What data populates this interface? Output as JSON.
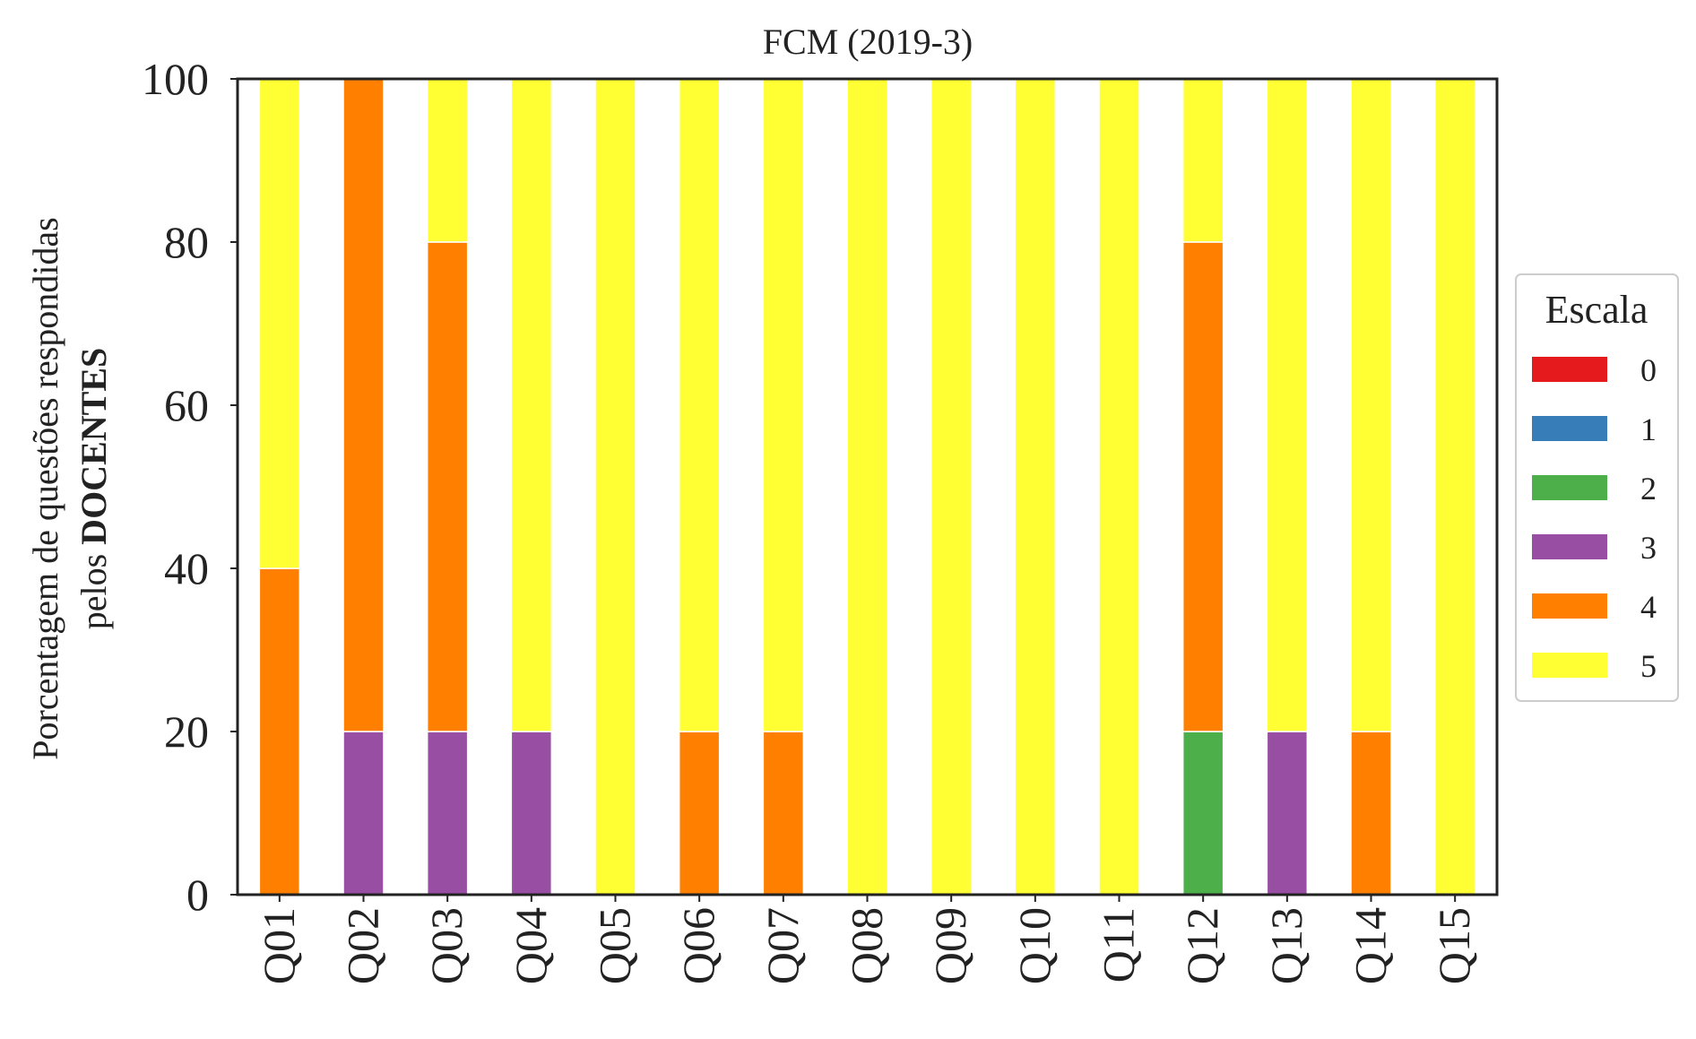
{
  "chart_data": {
    "type": "bar",
    "stacked": true,
    "title": "FCM (2019-3)",
    "ylabel_line1": "Porcentagem de questões respondidas",
    "ylabel_line2_prefix": "pelos ",
    "ylabel_line2_bold": "DOCENTES",
    "xlabel": "",
    "ylim": [
      0,
      100
    ],
    "yticks": [
      0,
      20,
      40,
      60,
      80,
      100
    ],
    "grid": false,
    "categories": [
      "Q01",
      "Q02",
      "Q03",
      "Q04",
      "Q05",
      "Q06",
      "Q07",
      "Q08",
      "Q09",
      "Q10",
      "Q11",
      "Q12",
      "Q13",
      "Q14",
      "Q15"
    ],
    "legend": {
      "title": "Escala",
      "placement": "right"
    },
    "series": [
      {
        "name": "0",
        "color": "#e41a1c",
        "values": [
          0,
          0,
          0,
          0,
          0,
          0,
          0,
          0,
          0,
          0,
          0,
          0,
          0,
          0,
          0
        ]
      },
      {
        "name": "1",
        "color": "#377eb8",
        "values": [
          0,
          0,
          0,
          0,
          0,
          0,
          0,
          0,
          0,
          0,
          0,
          0,
          0,
          0,
          0
        ]
      },
      {
        "name": "2",
        "color": "#4daf4a",
        "values": [
          0,
          0,
          0,
          0,
          0,
          0,
          0,
          0,
          0,
          0,
          0,
          20,
          0,
          0,
          0
        ]
      },
      {
        "name": "3",
        "color": "#984ea3",
        "values": [
          0,
          20,
          20,
          20,
          0,
          0,
          0,
          0,
          0,
          0,
          0,
          0,
          20,
          0,
          0
        ]
      },
      {
        "name": "4",
        "color": "#ff7f00",
        "values": [
          40,
          80,
          60,
          0,
          0,
          20,
          20,
          0,
          0,
          0,
          0,
          60,
          0,
          20,
          0
        ]
      },
      {
        "name": "5",
        "color": "#ffff33",
        "values": [
          60,
          0,
          20,
          80,
          100,
          80,
          80,
          100,
          100,
          100,
          100,
          20,
          80,
          80,
          100
        ]
      }
    ]
  }
}
